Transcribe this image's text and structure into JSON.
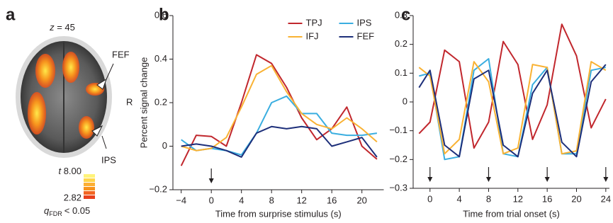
{
  "brain_panel": {
    "panel_label": "a",
    "slice_var": "z",
    "slice_value": "= 45",
    "labels": [
      "FEF",
      "R",
      "IPS"
    ],
    "colorbar": {
      "stat": "t",
      "max": "8.00",
      "min": "2.82",
      "q": "q",
      "q_sub": "FDR",
      "threshold": "< 0.05"
    }
  },
  "chart_data": [
    {
      "type": "line",
      "panel_label": "b",
      "ylabel": "Percent signal change",
      "xlabel": "Time from surprise stimulus (s)",
      "x": [
        -4,
        -2,
        0,
        2,
        4,
        6,
        8,
        10,
        12,
        14,
        16,
        18,
        20,
        22
      ],
      "series": [
        {
          "name": "TPJ",
          "color": "#c1272d",
          "values": [
            -0.09,
            0.05,
            0.045,
            0.0,
            0.2,
            0.42,
            0.38,
            0.27,
            0.13,
            0.03,
            0.08,
            0.18,
            0.0,
            -0.06
          ]
        },
        {
          "name": "IPS",
          "color": "#3aaee0",
          "values": [
            0.03,
            -0.02,
            -0.01,
            -0.02,
            -0.04,
            0.06,
            0.2,
            0.23,
            0.15,
            0.15,
            0.06,
            0.05,
            0.05,
            0.06
          ]
        },
        {
          "name": "IFJ",
          "color": "#f9b233",
          "values": [
            0.0,
            -0.02,
            -0.01,
            0.04,
            0.18,
            0.33,
            0.37,
            0.25,
            0.15,
            0.1,
            0.08,
            0.13,
            0.08,
            0.02
          ]
        },
        {
          "name": "FEF",
          "color": "#1d2f7a",
          "values": [
            0.0,
            0.01,
            0.0,
            -0.02,
            -0.05,
            0.06,
            0.09,
            0.08,
            0.09,
            0.08,
            0.0,
            0.02,
            0.04,
            -0.05
          ]
        }
      ],
      "xlim": [
        -5.1,
        22.9
      ],
      "xticks": [
        {
          "value": -4,
          "label": "−4"
        },
        0,
        4,
        8,
        12,
        16,
        20
      ],
      "ylim": [
        -0.2,
        0.6
      ],
      "yticks": [
        {
          "value": -0.2,
          "label": "−0.2"
        },
        0,
        0.2,
        0.4,
        0.6
      ],
      "event_markers": [
        0
      ],
      "legend": "top-right"
    },
    {
      "type": "line",
      "panel_label": "c",
      "xlabel": "Time from trial onset (s)",
      "x": [
        -1.5,
        0,
        2,
        4,
        6,
        8,
        10,
        12,
        14,
        16,
        18,
        20,
        22,
        24
      ],
      "series": [
        {
          "name": "TPJ",
          "color": "#c1272d",
          "values": [
            -0.11,
            -0.07,
            0.18,
            0.14,
            -0.16,
            -0.07,
            0.21,
            0.13,
            -0.13,
            -0.01,
            0.27,
            0.16,
            -0.09,
            0.01
          ]
        },
        {
          "name": "IPS",
          "color": "#3aaee0",
          "values": [
            0.09,
            0.1,
            -0.2,
            -0.19,
            0.11,
            0.15,
            -0.18,
            -0.19,
            0.06,
            0.12,
            -0.18,
            -0.18,
            0.11,
            0.12
          ]
        },
        {
          "name": "IFJ",
          "color": "#f9b233",
          "values": [
            0.12,
            0.09,
            -0.18,
            -0.13,
            0.14,
            0.07,
            -0.18,
            -0.16,
            0.13,
            0.12,
            -0.18,
            -0.17,
            0.14,
            0.11
          ]
        },
        {
          "name": "FEF",
          "color": "#1d2f7a",
          "values": [
            0.05,
            0.11,
            -0.15,
            -0.19,
            0.08,
            0.11,
            -0.15,
            -0.19,
            0.03,
            0.11,
            -0.14,
            -0.19,
            0.07,
            0.13
          ]
        }
      ],
      "xlim": [
        -2.3,
        24.5
      ],
      "xticks": [
        0,
        4,
        8,
        12,
        16,
        20,
        24
      ],
      "ylim": [
        -0.3,
        0.3
      ],
      "yticks": [
        {
          "value": -0.3,
          "label": "−0.3"
        },
        {
          "value": -0.2,
          "label": "−0.2"
        },
        {
          "value": -0.1,
          "label": "−0.1"
        },
        0,
        0.1,
        0.2,
        0.3
      ],
      "event_markers": [
        0,
        8,
        16,
        24
      ]
    }
  ]
}
